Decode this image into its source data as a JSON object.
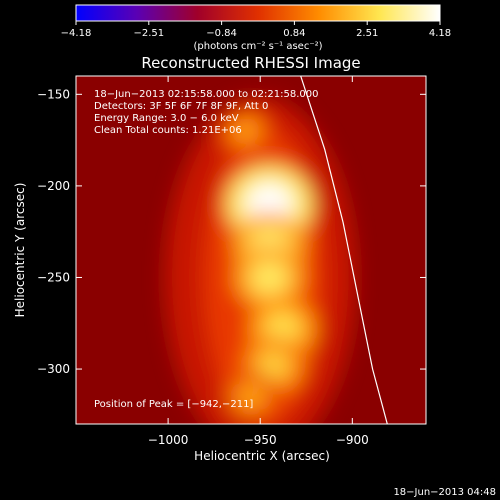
{
  "chart_data": {
    "type": "heatmap",
    "title": "Reconstructed RHESSI Image",
    "xlabel": "Heliocentric X (arcsec)",
    "ylabel": "Heliocentric Y (arcsec)",
    "xlim": [
      -1050,
      -860
    ],
    "ylim": [
      -330,
      -140
    ],
    "x_ticks": [
      -1000,
      -950,
      -900
    ],
    "y_ticks": [
      -150,
      -200,
      -250,
      -300
    ],
    "x_tick_labels": [
      "−1000",
      "−950",
      "−900"
    ],
    "y_tick_labels": [
      "−150",
      "−200",
      "−250",
      "−300"
    ],
    "colorbar": {
      "range": [
        -4.18,
        4.18
      ],
      "tick_labels": [
        "−4.18",
        "−2.51",
        "−0.84",
        "0.84",
        "2.51",
        "4.18"
      ],
      "unit_label": "(photons cm⁻² s⁻¹ asec⁻²)",
      "colors": [
        "#0000ff",
        "#5a00b4",
        "#a0002a",
        "#e03000",
        "#ff8c00",
        "#ffe650",
        "#ffffff"
      ]
    },
    "annotations": [
      "18−Jun−2013 02:15:58.000 to 02:21:58.000",
      "Detectors: 3F 5F 6F 7F 8F 9F, Att 0",
      "Energy Range: 3.0 − 6.0 keV",
      "Clean    Total counts: 1.21E+06"
    ],
    "peak_label": "Position of Peak = [−942,−211]",
    "peak": [
      -942,
      -211
    ],
    "sources": [
      {
        "x": -945,
        "y": -210,
        "intensity": 4.18
      },
      {
        "x": -945,
        "y": -232,
        "intensity": 3.0
      },
      {
        "x": -945,
        "y": -250,
        "intensity": 2.9
      },
      {
        "x": -938,
        "y": -278,
        "intensity": 2.7
      },
      {
        "x": -943,
        "y": -298,
        "intensity": 2.4
      },
      {
        "x": -955,
        "y": -315,
        "intensity": 1.7
      },
      {
        "x": -958,
        "y": -170,
        "intensity": 1.6
      }
    ],
    "limb": [
      [
        -928,
        -140
      ],
      [
        -915,
        -180
      ],
      [
        -905,
        -220
      ],
      [
        -897,
        -260
      ],
      [
        -889,
        -300
      ],
      [
        -881,
        -330
      ]
    ],
    "grid": false
  },
  "footer_timestamp": "18−Jun−2013 04:48"
}
